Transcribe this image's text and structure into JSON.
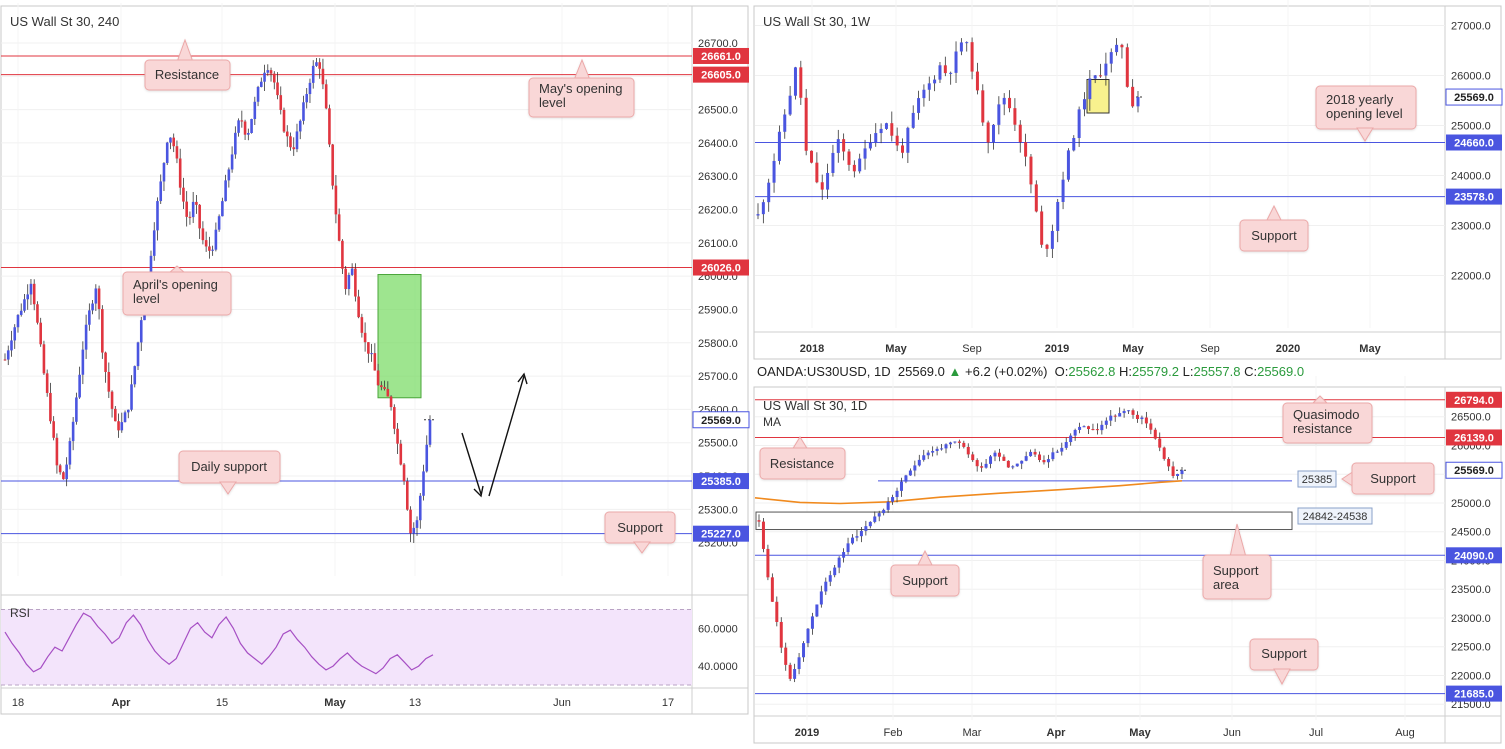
{
  "ohlc_bar": {
    "symbol": "OANDA:US30USD, 1D",
    "price": "25569.0",
    "change": "+6.2 (+0.02%)",
    "o_label": "O:",
    "o": "25562.8",
    "h_label": "H:",
    "h": "25579.2",
    "l_label": "L:",
    "l": "25557.8",
    "c_label": "C:",
    "c": "25569.0"
  },
  "colors": {
    "up": "#4a55e0",
    "down": "#e0353f",
    "resistance": "#e0353f",
    "support": "#4a55e0",
    "ma": "#f08a1e",
    "rsi": "#a64fc4",
    "zone_green": "#7ddc6a",
    "zone_yellow": "#f7ee7a",
    "callout_bg": "#f9d7d7",
    "callout_border": "#eba8a8"
  },
  "chart_data": [
    {
      "id": "h4",
      "type": "candlestick",
      "title": "US Wall St 30, 240",
      "ylim": [
        25130,
        26760
      ],
      "yticks": [
        "26700.0",
        "26600.0",
        "26500.0",
        "26400.0",
        "26300.0",
        "26200.0",
        "26100.0",
        "26000.0",
        "25900.0",
        "25800.0",
        "25700.0",
        "25600.0",
        "25500.0",
        "25400.0",
        "25300.0",
        "25200.0"
      ],
      "ytick_values": [
        26700,
        26600,
        26500,
        26400,
        26300,
        26200,
        26100,
        26000,
        25900,
        25800,
        25700,
        25600,
        25500,
        25400,
        25300,
        25200
      ],
      "xticks": [
        "18",
        "Apr",
        "15",
        "May",
        "13",
        "Jun",
        "17"
      ],
      "hlines": [
        {
          "value": 26661,
          "label": "26661.0",
          "kind": "resistance"
        },
        {
          "value": 26605,
          "label": "26605.0",
          "kind": "resistance"
        },
        {
          "value": 26026,
          "label": "26026.0",
          "kind": "resistance"
        },
        {
          "value": 25385,
          "label": "25385.0",
          "kind": "support"
        },
        {
          "value": 25227,
          "label": "25227.0",
          "kind": "support"
        }
      ],
      "last_price": {
        "value": 25569,
        "label": "25569.0"
      },
      "zone": {
        "ymin": 25635,
        "ymax": 26005
      },
      "callouts": [
        "Resistance",
        "May's opening level",
        "April's opening level",
        "Daily support",
        "Support"
      ],
      "path": [
        25750,
        25820,
        25880,
        25930,
        25990,
        25850,
        25700,
        25570,
        25420,
        25390,
        25500,
        25650,
        25800,
        25900,
        25980,
        25760,
        25640,
        25540,
        25560,
        25620,
        25750,
        25900,
        26020,
        26180,
        26300,
        26440,
        26380,
        26250,
        26160,
        26230,
        26120,
        26070,
        26100,
        26200,
        26300,
        26400,
        26480,
        26420,
        26500,
        26580,
        26640,
        26600,
        26500,
        26420,
        26380,
        26450,
        26540,
        26620,
        26650,
        26520,
        26300,
        26120,
        25960,
        26030,
        25900,
        25800,
        25760,
        25680,
        25650,
        25620,
        25500,
        25400,
        25230,
        25260,
        25420,
        25569
      ]
    },
    {
      "id": "rsi",
      "type": "line",
      "title": "RSI",
      "ylim": [
        30,
        75
      ],
      "yticks": [
        "60.0000",
        "40.0000"
      ],
      "ytick_values": [
        60,
        40
      ],
      "band": [
        30,
        70
      ],
      "values": [
        58,
        52,
        47,
        41,
        37,
        39,
        45,
        50,
        48,
        55,
        62,
        68,
        66,
        61,
        57,
        52,
        55,
        63,
        67,
        62,
        54,
        48,
        44,
        41,
        44,
        52,
        60,
        63,
        58,
        55,
        62,
        66,
        60,
        52,
        47,
        44,
        41,
        45,
        50,
        57,
        59,
        54,
        50,
        45,
        41,
        38,
        40,
        44,
        47,
        43,
        40,
        38,
        36,
        39,
        44,
        46,
        42,
        38,
        40,
        44,
        46
      ]
    },
    {
      "id": "w1",
      "type": "candlestick",
      "title": "US Wall St 30, 1W",
      "ylim": [
        21150,
        27150
      ],
      "yticks": [
        "27000.0",
        "26000.0",
        "25000.0",
        "24000.0",
        "23000.0",
        "22000.0"
      ],
      "ytick_values": [
        27000,
        26000,
        25000,
        24000,
        23000,
        22000
      ],
      "xticks": [
        "2018",
        "May",
        "Sep",
        "2019",
        "May",
        "Sep",
        "2020",
        "May"
      ],
      "hlines": [
        {
          "value": 24660,
          "label": "24660.0",
          "kind": "support"
        },
        {
          "value": 23578,
          "label": "23578.0",
          "kind": "support"
        }
      ],
      "last_price": {
        "value": 25569,
        "label": "25569.0"
      },
      "zone": {
        "ymin": 25250,
        "ymax": 25920
      },
      "callouts": [
        "2018 yearly opening level",
        "Support"
      ],
      "path": [
        23200,
        23700,
        24300,
        25000,
        25600,
        26300,
        24500,
        24100,
        23600,
        24200,
        24700,
        24400,
        24100,
        24300,
        24700,
        24900,
        25100,
        24800,
        24400,
        24900,
        25400,
        25700,
        25900,
        26200,
        26000,
        26400,
        26800,
        26200,
        25400,
        24700,
        25200,
        25600,
        25300,
        24800,
        24200,
        23400,
        22400,
        22800,
        23600,
        24300,
        24900,
        25500,
        25900,
        26000,
        26300,
        26500,
        26600,
        25400,
        25569
      ]
    },
    {
      "id": "d1",
      "type": "candlestick",
      "title": "US Wall St 30, 1D",
      "legend": "MA",
      "ylim": [
        21400,
        26860
      ],
      "yticks": [
        "26500.0",
        "26000.0",
        "25500.0",
        "25000.0",
        "24500.0",
        "24000.0",
        "23500.0",
        "23000.0",
        "22500.0",
        "22000.0",
        "21500.0"
      ],
      "ytick_values": [
        26500,
        26000,
        25500,
        25000,
        24500,
        24000,
        23500,
        23000,
        22500,
        22000,
        21500
      ],
      "xticks": [
        "2019",
        "Feb",
        "Mar",
        "Apr",
        "May",
        "Jun",
        "Jul",
        "Aug"
      ],
      "hlines": [
        {
          "value": 26794,
          "label": "26794.0",
          "kind": "resistance"
        },
        {
          "value": 26139,
          "label": "26139.0",
          "kind": "resistance"
        },
        {
          "value": 24090,
          "label": "24090.0",
          "kind": "support"
        },
        {
          "value": 21685,
          "label": "21685.0",
          "kind": "support"
        }
      ],
      "support_line": {
        "value": 25385,
        "label": "25385"
      },
      "area_box": {
        "ymin": 24538,
        "ymax": 24842,
        "label": "24842-24538"
      },
      "last_price": {
        "value": 25569,
        "label": "25569.0"
      },
      "callouts": [
        "Quasimodo resistance",
        "Resistance",
        "Support",
        "Support area",
        "Support",
        "Support"
      ],
      "path": [
        24700,
        23800,
        23100,
        22400,
        21900,
        22300,
        22700,
        23100,
        23500,
        23700,
        24000,
        24200,
        24400,
        24500,
        24650,
        24800,
        24900,
        25100,
        25300,
        25500,
        25700,
        25850,
        25900,
        25950,
        26000,
        26050,
        26000,
        25800,
        25600,
        25700,
        25900,
        25800,
        25600,
        25700,
        25800,
        25900,
        25700,
        25800,
        25900,
        26000,
        26200,
        26350,
        26300,
        26250,
        26400,
        26500,
        26550,
        26600,
        26500,
        26450,
        26300,
        26000,
        25700,
        25450,
        25569
      ]
    }
  ]
}
